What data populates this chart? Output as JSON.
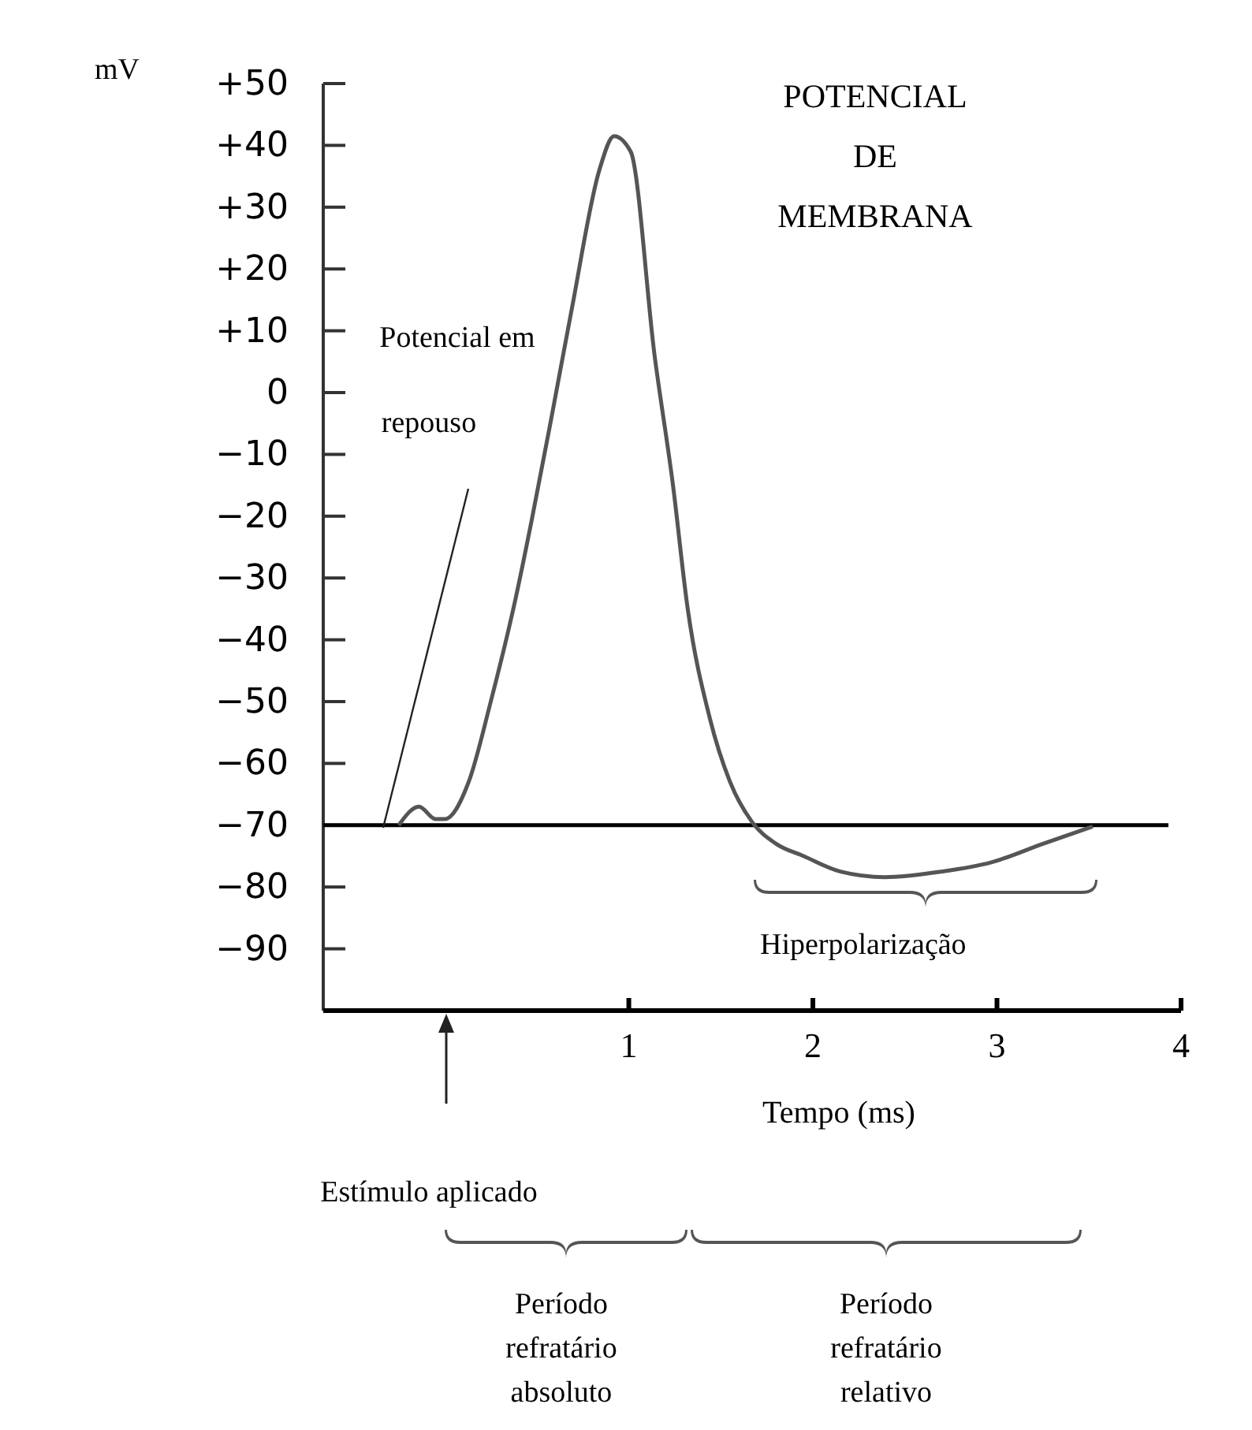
{
  "chart_data": {
    "type": "line",
    "title": "POTENCIAL DE MEMBRANA",
    "ylabel": "mV",
    "xlabel": "Tempo (ms)",
    "x": [
      -0.25,
      -0.14,
      -0.05,
      0.0,
      0.13,
      0.25,
      0.38,
      0.47,
      0.58,
      0.69,
      0.84,
      0.92,
      1.01,
      1.14,
      1.24,
      1.32,
      1.44,
      1.55,
      1.67,
      1.8,
      1.95,
      2.15,
      2.39,
      2.7,
      2.97,
      3.25,
      3.52
    ],
    "series": [
      {
        "color": "#555555",
        "values": [
          -70,
          -67,
          -69,
          -69,
          -63,
          -50,
          -34,
          -21,
          -4,
          13.5,
          36,
          41.5,
          39,
          6,
          -15,
          -35,
          -52.7,
          -63,
          -69.5,
          -73,
          -75,
          -77.5,
          -78.4,
          -77.5,
          -76,
          -73,
          -70.2
        ]
      }
    ],
    "xlim": [
      -0.66,
      4
    ],
    "xticks": [
      1,
      2,
      3,
      4
    ],
    "ylim": [
      -100,
      50
    ],
    "yticks": [
      {
        "value": 50,
        "label": "+50"
      },
      {
        "value": 40,
        "label": "+40"
      },
      {
        "value": 30,
        "label": "+30"
      },
      {
        "value": 20,
        "label": "+20"
      },
      {
        "value": 10,
        "label": "+10"
      },
      0,
      {
        "value": -10,
        "label": "−10"
      },
      {
        "value": -20,
        "label": "−20"
      },
      {
        "value": -30,
        "label": "−30"
      },
      {
        "value": -40,
        "label": "−40"
      },
      {
        "value": -50,
        "label": "−50"
      },
      {
        "value": -60,
        "label": "−60"
      },
      {
        "value": -70,
        "label": "−70"
      },
      {
        "value": -80,
        "label": "−80"
      },
      {
        "value": -90,
        "label": "−90"
      }
    ],
    "ref_lines": [
      {
        "axis": "y",
        "value": -70,
        "color": "#000000"
      }
    ],
    "annotations": [
      "Potencial em repouso",
      "Estímulo aplicado",
      "Hiperpolarização",
      "Período refratário absoluto",
      "Período refratário relativo"
    ],
    "grid": false,
    "marker": "none",
    "line_style": "solid"
  }
}
